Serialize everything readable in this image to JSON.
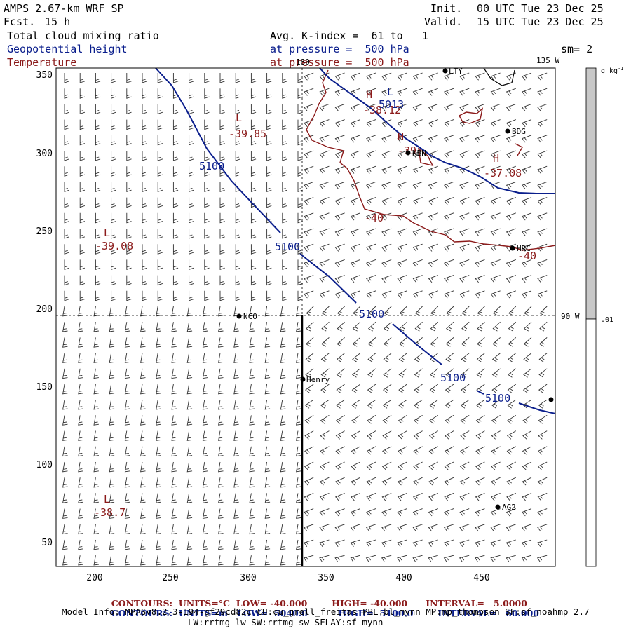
{
  "header": {
    "model_title": "AMPS 2.67-km WRF SP",
    "forecast_label": "Fcst.",
    "forecast_hours": "15 h",
    "init_label": "Init.",
    "init_time": "00 UTC Tue 23 Dec 25",
    "valid_label": "Valid.",
    "valid_time": "15 UTC Tue 23 Dec 25"
  },
  "fields": {
    "field1": "Total cloud mixing ratio",
    "field1_detail": "Avg. K-index =  61 to   1",
    "field2": "Geopotential height",
    "field2_detail": "at pressure =  500 hPa",
    "field3": "Temperature",
    "field3_detail": "at pressure =  500 hPa",
    "smoothing": "sm= 2",
    "colors": {
      "field1": "#000000",
      "field2": "#0a1e8c",
      "field3": "#8b1a1a"
    }
  },
  "colorbar": {
    "unit": "g kg",
    "unit_exponent": "-1",
    "tick_label": ".01",
    "fill_color": "#c8c8c8"
  },
  "map": {
    "x_ticks": [
      "200",
      "250",
      "300",
      "350",
      "400",
      "450"
    ],
    "y_ticks": [
      "350",
      "300",
      "250",
      "200",
      "150",
      "100",
      "50"
    ],
    "meridian_labels": {
      "m180": "180",
      "m135": "135 W",
      "m90": "90 W"
    },
    "stations": [
      {
        "id": "lty",
        "label": "LTY"
      },
      {
        "id": "bdg",
        "label": "BDG"
      },
      {
        "id": "kbn",
        "label": "KBN"
      },
      {
        "id": "hrc",
        "label": "HRC"
      },
      {
        "id": "nco",
        "label": "NCO"
      },
      {
        "id": "henry",
        "label": "Henry"
      },
      {
        "id": "ag2",
        "label": "AG2"
      },
      {
        "id": "east",
        "label": ""
      }
    ],
    "height_contour_labels": [
      "5100",
      "5100",
      "5100",
      "5100",
      "5100"
    ],
    "temp_contour_labels": [
      "-40",
      "-40"
    ],
    "extrema": [
      {
        "id": "l1",
        "letter": "L",
        "value": "-39.85",
        "color": "#8b1a1a"
      },
      {
        "id": "l2",
        "letter": "L",
        "value": "-39.08",
        "color": "#8b1a1a"
      },
      {
        "id": "l3",
        "letter": "L",
        "value": "-38.7",
        "color": "#8b1a1a"
      },
      {
        "id": "h1",
        "letter": "H",
        "value": "-38.12",
        "color": "#8b1a1a"
      },
      {
        "id": "h2",
        "letter": "H",
        "value": "-37.08",
        "color": "#8b1a1a"
      },
      {
        "id": "h3",
        "letter": "H",
        "value": "-39",
        "color": "#8b1a1a"
      },
      {
        "id": "lb",
        "letter": "L",
        "value": "5013",
        "color": "#0a1e8c"
      }
    ]
  },
  "footer": {
    "row1": {
      "contours": "CONTOURS:",
      "units": "UNITS=°C",
      "low": "LOW= -40.000",
      "high": "HIGH= -40.000",
      "interval": "INTERVAL=   5.0000"
    },
    "row2": {
      "contours": "CONTOURS:",
      "units": "UNITS=m",
      "low": "LOW=  5040.0",
      "high": "HIGH=  5100.0",
      "interval": "INTERVAL=   60.000"
    },
    "model_info_1": "Model Info: MPASv8.2.3-194-gf29cd82c CU:cu_grell_freitas PBL:bl_mynn MP:mp_thompson SF:sf_noahmp 2.7",
    "model_info_2": "LW:rrtmg_lw SW:rrtmg_sw SFLAY:sf_mynn"
  }
}
